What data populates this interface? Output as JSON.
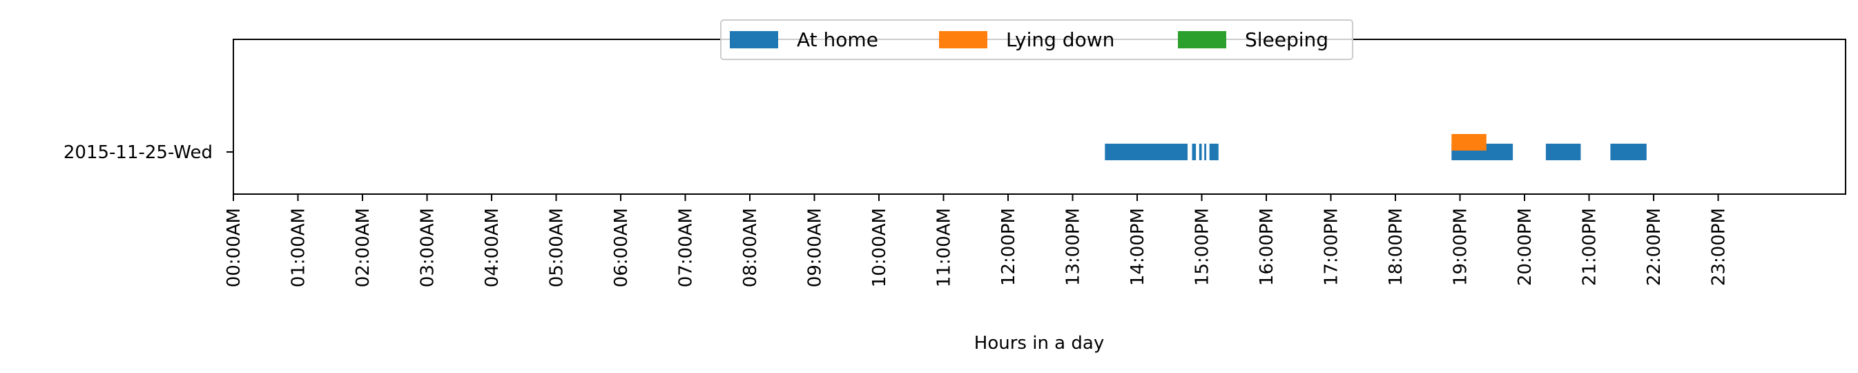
{
  "chart_data": {
    "type": "broken_barh",
    "xlabel": "Hours in a day",
    "x_unit": "hour",
    "xlim": [
      0,
      24
    ],
    "x_ticks": [
      0,
      1,
      2,
      3,
      4,
      5,
      6,
      7,
      8,
      9,
      10,
      11,
      12,
      13,
      14,
      15,
      16,
      17,
      18,
      19,
      20,
      21,
      22,
      23
    ],
    "x_tick_labels": [
      "00:00AM",
      "01:00AM",
      "02:00AM",
      "03:00AM",
      "04:00AM",
      "05:00AM",
      "06:00AM",
      "07:00AM",
      "08:00AM",
      "09:00AM",
      "10:00AM",
      "11:00AM",
      "12:00PM",
      "13:00PM",
      "14:00PM",
      "15:00PM",
      "16:00PM",
      "17:00PM",
      "18:00PM",
      "19:00PM",
      "20:00PM",
      "21:00PM",
      "22:00PM",
      "23:00PM"
    ],
    "y_categories": [
      "2015-11-25-Wed"
    ],
    "legend_position": "top-center",
    "grid": false,
    "series": [
      {
        "name": "At home",
        "color": "#1f77b4",
        "row": "2015-11-25-Wed",
        "intervals": [
          [
            13.5,
            14.78
          ],
          [
            14.85,
            14.91
          ],
          [
            14.96,
            15.0
          ],
          [
            15.04,
            15.07
          ],
          [
            15.12,
            15.26
          ],
          [
            18.87,
            19.82
          ],
          [
            20.33,
            20.87
          ],
          [
            21.33,
            21.89
          ]
        ]
      },
      {
        "name": "Lying down",
        "color": "#ff7f0e",
        "row": "2015-11-25-Wed",
        "intervals": [
          [
            18.87,
            19.41
          ]
        ]
      },
      {
        "name": "Sleeping",
        "color": "#2ca02c",
        "row": "2015-11-25-Wed",
        "intervals": []
      }
    ]
  }
}
